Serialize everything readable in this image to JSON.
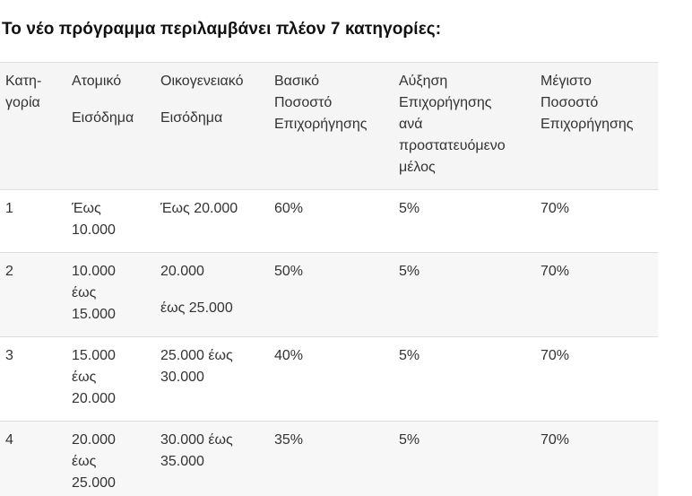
{
  "heading": "Το νέο πρόγραμμα περιλαμβάνει πλέον 7 κατηγορίες:",
  "table": {
    "headers": [
      [
        "Κατη-",
        "γορία"
      ],
      [
        "Ατομικό",
        "",
        "Εισόδημα"
      ],
      [
        "Οικογενειακό",
        "",
        "Εισόδημα"
      ],
      [
        "Βασικό",
        "Ποσοστό",
        "Επιχορήγησης"
      ],
      [
        "Αύξηση",
        "Επιχορήγησης",
        "ανά",
        "προστατευόμενο",
        "μέλος"
      ],
      [
        "Μέγιστο",
        "Ποσοστό",
        "Επιχορήγησης"
      ]
    ],
    "rows": [
      {
        "category": "1",
        "individual": [
          "Έως",
          "10.000"
        ],
        "family": [
          "Έως 20.000"
        ],
        "basic": "60%",
        "increase": "5%",
        "max": "70%"
      },
      {
        "category": "2",
        "individual": [
          "10.000",
          "έως",
          "15.000"
        ],
        "family": [
          "20.000",
          "",
          "έως 25.000"
        ],
        "basic": "50%",
        "increase": "5%",
        "max": "70%"
      },
      {
        "category": "3",
        "individual": [
          "15.000",
          "έως",
          "20.000"
        ],
        "family": [
          "25.000 έως",
          "30.000"
        ],
        "basic": "40%",
        "increase": "5%",
        "max": "70%"
      },
      {
        "category": "4",
        "individual": [
          "20.000",
          "έως",
          "25.000"
        ],
        "family": [
          "30.000 έως",
          "35.000"
        ],
        "basic": "35%",
        "increase": "5%",
        "max": "70%"
      }
    ]
  }
}
